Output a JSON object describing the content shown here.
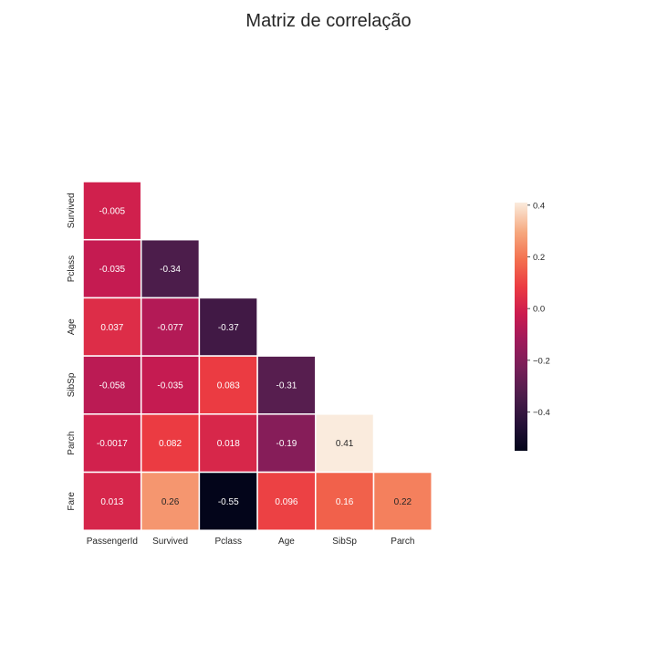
{
  "chart_data": {
    "type": "heatmap",
    "title": "Matriz de correlação",
    "xlabel": "",
    "ylabel": "",
    "x_categories": [
      "PassengerId",
      "Survived",
      "Pclass",
      "Age",
      "SibSp",
      "Parch"
    ],
    "y_categories": [
      "Survived",
      "Pclass",
      "Age",
      "SibSp",
      "Parch",
      "Fare"
    ],
    "values": [
      [
        -0.005,
        null,
        null,
        null,
        null,
        null
      ],
      [
        -0.035,
        -0.34,
        null,
        null,
        null,
        null
      ],
      [
        0.037,
        -0.077,
        -0.37,
        null,
        null,
        null
      ],
      [
        -0.058,
        -0.035,
        0.083,
        -0.31,
        null,
        null
      ],
      [
        -0.0017,
        0.082,
        0.018,
        -0.19,
        0.41,
        null
      ],
      [
        0.013,
        0.26,
        -0.55,
        0.096,
        0.16,
        0.22
      ]
    ],
    "cell_labels": [
      [
        "-0.005",
        "",
        "",
        "",
        "",
        ""
      ],
      [
        "-0.035",
        "-0.34",
        "",
        "",
        "",
        ""
      ],
      [
        "0.037",
        "-0.077",
        "-0.37",
        "",
        "",
        ""
      ],
      [
        "-0.058",
        "-0.035",
        "0.083",
        "-0.31",
        "",
        ""
      ],
      [
        "-0.0017",
        "0.082",
        "0.018",
        "-0.19",
        "0.41",
        ""
      ],
      [
        "0.013",
        "0.26",
        "-0.55",
        "0.096",
        "0.16",
        "0.22"
      ]
    ],
    "mask": "upper-triangle",
    "colorbar": {
      "range": [
        -0.55,
        0.41
      ],
      "ticks": [
        0.4,
        0.2,
        0.0,
        -0.2,
        -0.4
      ],
      "tick_labels": [
        "0.4",
        "0.2",
        "0.0",
        "−0.2",
        "−0.4"
      ],
      "colormap": "rocket",
      "placement": "right"
    }
  }
}
